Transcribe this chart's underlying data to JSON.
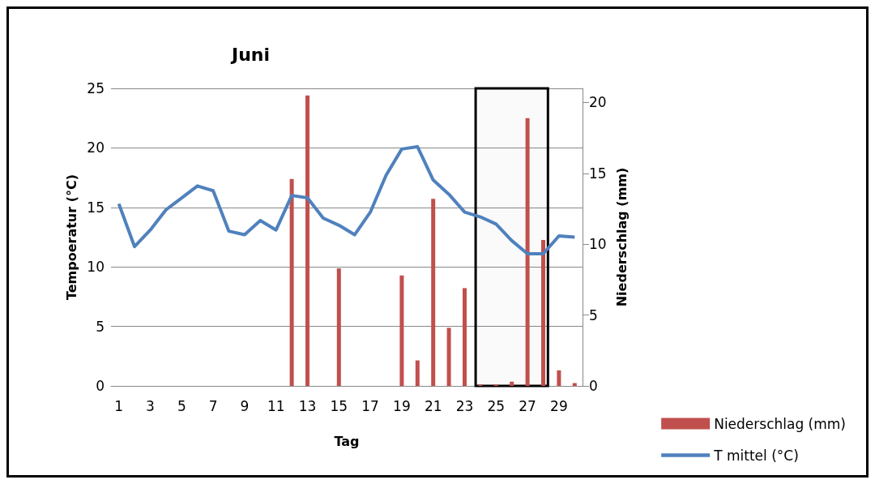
{
  "chart_data": {
    "type": "bar",
    "title": "Juni",
    "xlabel": "Tag",
    "ylabel": "Tempoeratur (°C)",
    "y2label": "Niederschlag (mm)",
    "x": [
      1,
      2,
      3,
      4,
      5,
      6,
      7,
      8,
      9,
      10,
      11,
      12,
      13,
      14,
      15,
      16,
      17,
      18,
      19,
      20,
      21,
      22,
      23,
      24,
      25,
      26,
      27,
      28,
      29,
      30
    ],
    "xlim": [
      0.5,
      30.5
    ],
    "xticks": [
      1,
      3,
      5,
      7,
      9,
      11,
      13,
      15,
      17,
      19,
      21,
      23,
      25,
      27,
      29
    ],
    "series": [
      {
        "name": "Niederschlag (mm)",
        "axis": "y2",
        "color": "#c0504d",
        "values": [
          0,
          0,
          0,
          0,
          0,
          0,
          0,
          0,
          0,
          0,
          0,
          14.6,
          20.5,
          0,
          8.3,
          0,
          0,
          0,
          7.8,
          1.8,
          13.2,
          4.1,
          6.9,
          0.1,
          0.1,
          0.3,
          18.9,
          10.3,
          1.1,
          0.2
        ]
      },
      {
        "name": "T mittel (°C)",
        "type": "line",
        "color": "#4f81bd",
        "values": [
          15.3,
          11.7,
          13.1,
          14.8,
          15.8,
          16.8,
          16.4,
          13.0,
          12.7,
          13.9,
          13.1,
          16.0,
          15.8,
          14.1,
          13.5,
          12.7,
          14.6,
          17.7,
          19.9,
          20.1,
          17.3,
          16.1,
          14.6,
          14.2,
          13.6,
          12.2,
          11.1,
          11.1,
          12.6,
          12.5
        ]
      }
    ],
    "ylim": [
      0,
      25
    ],
    "yticks": [
      0,
      5,
      10,
      15,
      20,
      25
    ],
    "y2lim": [
      0,
      21
    ],
    "y2ticks": [
      0,
      5,
      10,
      15,
      20
    ],
    "bands": [
      {
        "axis": "x",
        "from": 23.7,
        "to": 28.3,
        "color": "#000000"
      }
    ],
    "grid": "y",
    "legend": "right",
    "marker": "none",
    "line_style": "solid"
  }
}
